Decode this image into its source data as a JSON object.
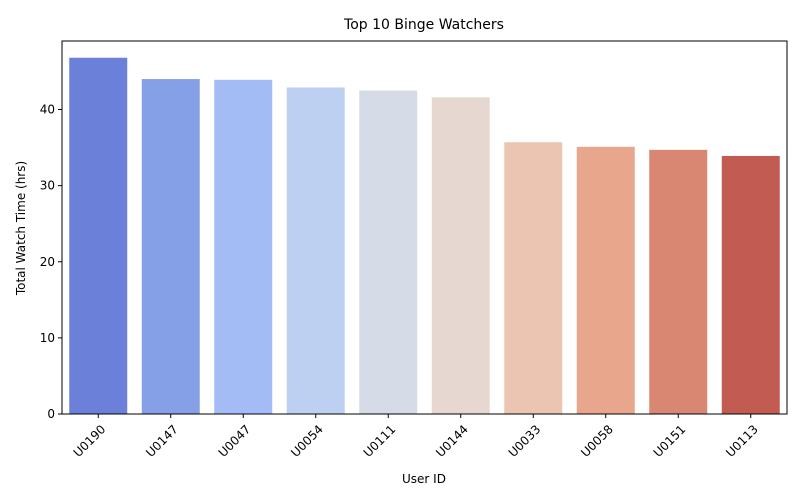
{
  "chart_data": {
    "type": "bar",
    "title": "Top 10 Binge Watchers",
    "xlabel": "User ID",
    "ylabel": "Total Watch Time (hrs)",
    "categories": [
      "U0190",
      "U0147",
      "U0047",
      "U0054",
      "U0111",
      "U0144",
      "U0033",
      "U0058",
      "U0151",
      "U0113"
    ],
    "values": [
      46.8,
      44.0,
      43.9,
      42.9,
      42.5,
      41.6,
      35.7,
      35.1,
      34.7,
      33.9
    ],
    "colors": [
      "#6b80d8",
      "#86a0e7",
      "#a3bcf6",
      "#bdd0f1",
      "#d5dce8",
      "#e6d8d1",
      "#ecc5b2",
      "#e8a78d",
      "#d98673",
      "#c25c53"
    ],
    "ylim": [
      0,
      49
    ],
    "yticks": [
      0,
      10,
      20,
      30,
      40
    ],
    "xtick_rotation": 45,
    "grid": false,
    "legend": "none"
  }
}
